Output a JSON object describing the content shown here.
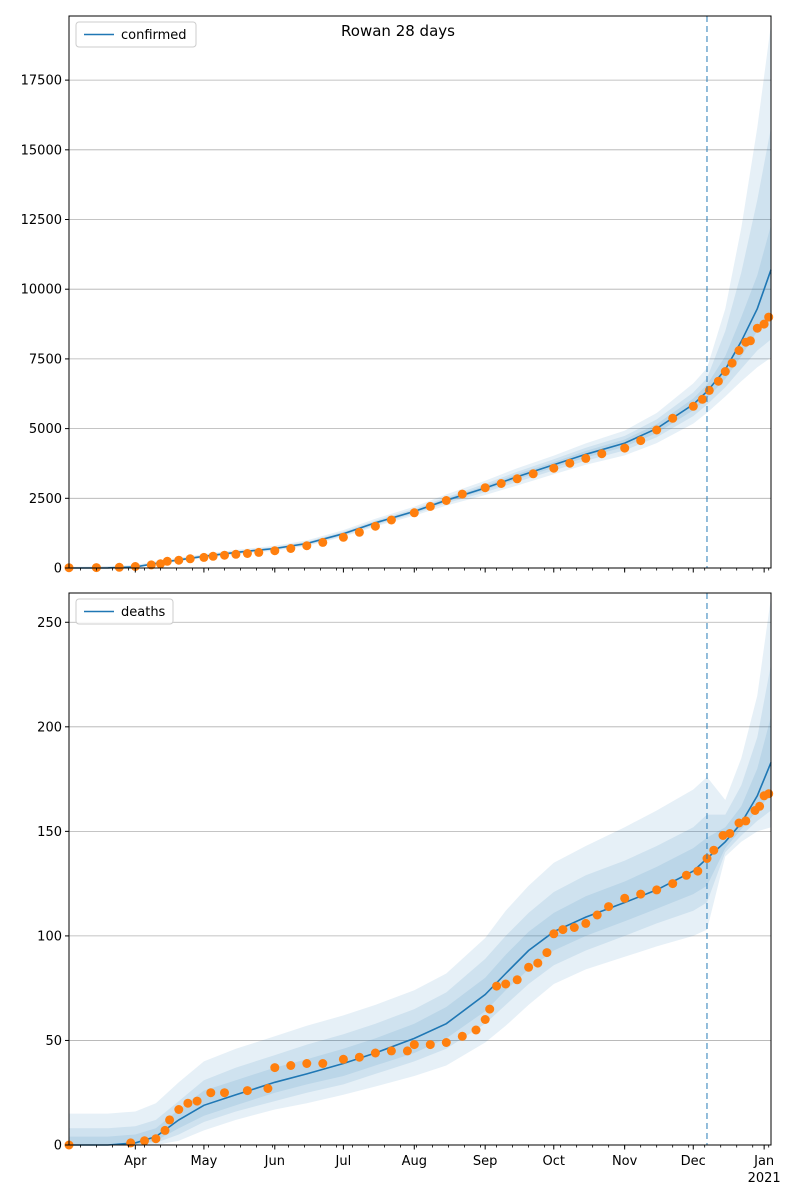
{
  "title": "Rowan 28 days",
  "colors": {
    "model_line": "#1f77b4",
    "observed": "#ff7f0e",
    "band": "#1f77b4",
    "grid": "#b0b0b0",
    "vline": "#1f77b4"
  },
  "x_axis": {
    "start": "2020-03-03",
    "end": "2021-01-04",
    "tick_labels": [
      {
        "date": "2020-04-01",
        "label": "Apr"
      },
      {
        "date": "2020-05-01",
        "label": "May"
      },
      {
        "date": "2020-06-01",
        "label": "Jun"
      },
      {
        "date": "2020-07-01",
        "label": "Jul"
      },
      {
        "date": "2020-08-01",
        "label": "Aug"
      },
      {
        "date": "2020-09-01",
        "label": "Sep"
      },
      {
        "date": "2020-10-01",
        "label": "Oct"
      },
      {
        "date": "2020-11-01",
        "label": "Nov"
      },
      {
        "date": "2020-12-01",
        "label": "Dec"
      },
      {
        "date": "2021-01-01",
        "label": "Jan"
      }
    ],
    "year_label": "2021",
    "forecast_date": "2020-12-07"
  },
  "chart_data": [
    {
      "type": "line",
      "legend": "confirmed",
      "legend_position": "upper-left",
      "grid": true,
      "ylim": [
        0,
        19800
      ],
      "yticks": [
        0,
        2500,
        5000,
        7500,
        10000,
        12500,
        15000,
        17500
      ],
      "model": {
        "dates": [
          "2020-03-03",
          "2020-03-20",
          "2020-04-01",
          "2020-04-15",
          "2020-05-01",
          "2020-05-15",
          "2020-06-01",
          "2020-06-15",
          "2020-07-01",
          "2020-07-15",
          "2020-08-01",
          "2020-08-15",
          "2020-09-01",
          "2020-09-15",
          "2020-10-01",
          "2020-10-15",
          "2020-11-01",
          "2020-11-15",
          "2020-12-01",
          "2020-12-07",
          "2020-12-15",
          "2020-12-22",
          "2020-12-29",
          "2021-01-04"
        ],
        "values": [
          0,
          5,
          40,
          230,
          420,
          560,
          700,
          880,
          1230,
          1620,
          2030,
          2430,
          2870,
          3270,
          3700,
          4080,
          4480,
          5000,
          5870,
          6330,
          7120,
          8130,
          9300,
          10700
        ]
      },
      "bands": [
        {
          "lower": [
            0,
            0,
            20,
            180,
            360,
            480,
            620,
            790,
            1120,
            1490,
            1880,
            2240,
            2620,
            2960,
            3360,
            3700,
            4040,
            4480,
            5180,
            5570,
            6150,
            6700,
            7200,
            7550
          ],
          "upper": [
            40,
            70,
            110,
            310,
            500,
            650,
            800,
            990,
            1360,
            1770,
            2200,
            2640,
            3130,
            3580,
            4030,
            4470,
            4930,
            5560,
            6620,
            7170,
            9300,
            12200,
            15800,
            19500
          ]
        },
        {
          "lower": [
            0,
            0,
            25,
            200,
            380,
            510,
            650,
            820,
            1160,
            1540,
            1940,
            2320,
            2720,
            3090,
            3500,
            3850,
            4220,
            4690,
            5450,
            5860,
            6480,
            7150,
            7800,
            8200
          ],
          "upper": [
            25,
            45,
            80,
            270,
            470,
            610,
            750,
            940,
            1300,
            1700,
            2120,
            2540,
            3020,
            3450,
            3900,
            4310,
            4740,
            5330,
            6300,
            6810,
            8500,
            10600,
            13200,
            15800
          ]
        },
        {
          "lower": [
            0,
            0,
            30,
            210,
            395,
            530,
            670,
            845,
            1190,
            1575,
            1985,
            2375,
            2800,
            3180,
            3600,
            3960,
            4350,
            4840,
            5660,
            6090,
            6780,
            7600,
            8500,
            9200
          ],
          "upper": [
            15,
            25,
            55,
            250,
            445,
            585,
            725,
            910,
            1265,
            1660,
            2075,
            2490,
            2945,
            3370,
            3800,
            4200,
            4610,
            5160,
            6080,
            6570,
            7600,
            9000,
            10500,
            12300
          ]
        }
      ],
      "observed": {
        "dates": [
          "2020-03-03",
          "2020-03-15",
          "2020-03-25",
          "2020-04-01",
          "2020-04-08",
          "2020-04-12",
          "2020-04-15",
          "2020-04-20",
          "2020-04-25",
          "2020-05-01",
          "2020-05-05",
          "2020-05-10",
          "2020-05-15",
          "2020-05-20",
          "2020-05-25",
          "2020-06-01",
          "2020-06-08",
          "2020-06-15",
          "2020-06-22",
          "2020-07-01",
          "2020-07-08",
          "2020-07-15",
          "2020-07-22",
          "2020-08-01",
          "2020-08-08",
          "2020-08-15",
          "2020-08-22",
          "2020-09-01",
          "2020-09-08",
          "2020-09-15",
          "2020-09-22",
          "2020-10-01",
          "2020-10-08",
          "2020-10-15",
          "2020-10-22",
          "2020-11-01",
          "2020-11-08",
          "2020-11-15",
          "2020-11-22",
          "2020-12-01",
          "2020-12-05",
          "2020-12-08",
          "2020-12-12",
          "2020-12-15",
          "2020-12-18",
          "2020-12-21",
          "2020-12-24",
          "2020-12-26",
          "2020-12-29",
          "2021-01-01",
          "2021-01-03"
        ],
        "values": [
          10,
          15,
          25,
          55,
          110,
          150,
          240,
          280,
          330,
          380,
          420,
          460,
          490,
          520,
          560,
          620,
          700,
          800,
          920,
          1100,
          1280,
          1500,
          1720,
          1980,
          2210,
          2420,
          2650,
          2880,
          3030,
          3200,
          3380,
          3580,
          3760,
          3930,
          4100,
          4300,
          4570,
          4950,
          5370,
          5800,
          6050,
          6370,
          6700,
          7050,
          7350,
          7800,
          8100,
          8150,
          8600,
          8750,
          9000
        ]
      }
    },
    {
      "type": "line",
      "legend": "deaths",
      "legend_position": "upper-left",
      "grid": true,
      "ylim": [
        0,
        264
      ],
      "yticks": [
        0,
        50,
        100,
        150,
        200,
        250
      ],
      "model": {
        "dates": [
          "2020-03-03",
          "2020-03-20",
          "2020-04-01",
          "2020-04-10",
          "2020-04-20",
          "2020-05-01",
          "2020-05-15",
          "2020-06-01",
          "2020-06-15",
          "2020-07-01",
          "2020-07-15",
          "2020-08-01",
          "2020-08-15",
          "2020-09-01",
          "2020-09-10",
          "2020-09-20",
          "2020-10-01",
          "2020-10-15",
          "2020-11-01",
          "2020-11-15",
          "2020-12-01",
          "2020-12-07",
          "2020-12-15",
          "2020-12-22",
          "2020-12-29",
          "2021-01-04"
        ],
        "values": [
          0,
          0,
          1,
          4,
          12,
          19,
          24,
          30,
          34,
          39,
          44,
          51,
          58,
          72,
          82,
          93,
          102,
          109,
          116,
          122,
          131,
          137,
          145,
          154,
          167,
          183
        ]
      },
      "bands": [
        {
          "lower": [
            0,
            0,
            0,
            0,
            2,
            7,
            12,
            17,
            20,
            24,
            28,
            33,
            38,
            49,
            57,
            67,
            77,
            84,
            90,
            95,
            100,
            103,
            138,
            145,
            150,
            152
          ],
          "upper": [
            15,
            15,
            16,
            20,
            30,
            40,
            46,
            52,
            57,
            62,
            67,
            74,
            82,
            99,
            112,
            124,
            135,
            143,
            152,
            160,
            170,
            176,
            165,
            185,
            215,
            262
          ]
        },
        {
          "lower": [
            0,
            0,
            0,
            1,
            5,
            11,
            16,
            21,
            25,
            29,
            34,
            40,
            46,
            58,
            67,
            77,
            86,
            93,
            100,
            106,
            112,
            116,
            140,
            148,
            155,
            160
          ],
          "upper": [
            8,
            8,
            9,
            12,
            21,
            31,
            37,
            43,
            48,
            53,
            58,
            65,
            73,
            89,
            100,
            111,
            121,
            129,
            136,
            143,
            152,
            158,
            158,
            172,
            195,
            230
          ]
        },
        {
          "lower": [
            0,
            0,
            0,
            2,
            8,
            14,
            19,
            25,
            29,
            33,
            38,
            44,
            51,
            64,
            74,
            84,
            93,
            100,
            107,
            113,
            120,
            124,
            142,
            151,
            160,
            168
          ],
          "upper": [
            4,
            4,
            5,
            8,
            17,
            26,
            31,
            37,
            41,
            46,
            51,
            58,
            66,
            80,
            91,
            102,
            111,
            119,
            126,
            133,
            142,
            147,
            152,
            162,
            180,
            205
          ]
        }
      ],
      "observed": {
        "dates": [
          "2020-03-03",
          "2020-03-30",
          "2020-04-05",
          "2020-04-10",
          "2020-04-14",
          "2020-04-16",
          "2020-04-20",
          "2020-04-24",
          "2020-04-28",
          "2020-05-04",
          "2020-05-10",
          "2020-05-20",
          "2020-05-29",
          "2020-06-01",
          "2020-06-08",
          "2020-06-15",
          "2020-06-22",
          "2020-07-01",
          "2020-07-08",
          "2020-07-15",
          "2020-07-22",
          "2020-07-29",
          "2020-08-01",
          "2020-08-08",
          "2020-08-15",
          "2020-08-22",
          "2020-08-28",
          "2020-09-01",
          "2020-09-03",
          "2020-09-06",
          "2020-09-10",
          "2020-09-15",
          "2020-09-20",
          "2020-09-24",
          "2020-09-28",
          "2020-10-01",
          "2020-10-05",
          "2020-10-10",
          "2020-10-15",
          "2020-10-20",
          "2020-10-25",
          "2020-11-01",
          "2020-11-08",
          "2020-11-15",
          "2020-11-22",
          "2020-11-28",
          "2020-12-03",
          "2020-12-07",
          "2020-12-10",
          "2020-12-14",
          "2020-12-17",
          "2020-12-21",
          "2020-12-24",
          "2020-12-28",
          "2020-12-30",
          "2021-01-01",
          "2021-01-03"
        ],
        "values": [
          0,
          1,
          2,
          3,
          7,
          12,
          17,
          20,
          21,
          25,
          25,
          26,
          27,
          37,
          38,
          39,
          39,
          41,
          42,
          44,
          45,
          45,
          48,
          48,
          49,
          52,
          55,
          60,
          65,
          76,
          77,
          79,
          85,
          87,
          92,
          101,
          103,
          104,
          106,
          110,
          114,
          118,
          120,
          122,
          125,
          129,
          131,
          137,
          141,
          148,
          149,
          154,
          155,
          160,
          162,
          167,
          168
        ]
      }
    }
  ]
}
